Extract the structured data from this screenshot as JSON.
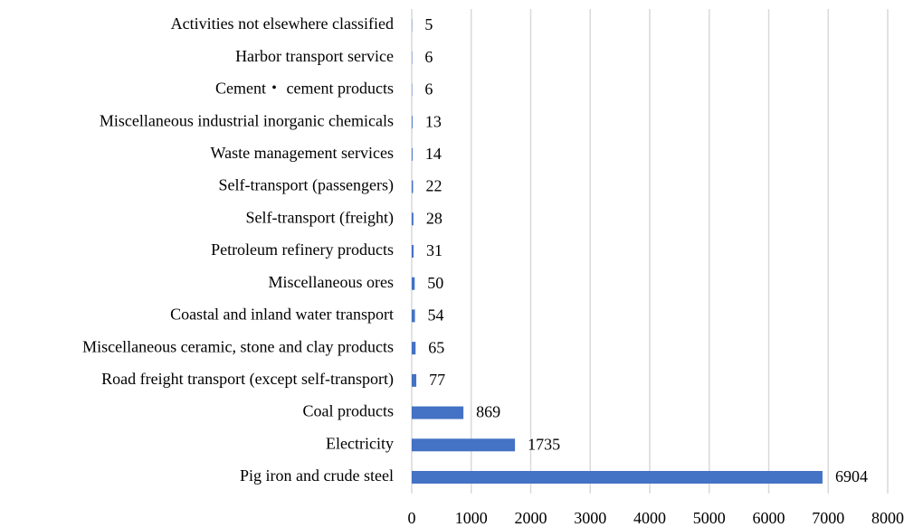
{
  "chart_data": {
    "type": "bar",
    "orientation": "horizontal",
    "categories": [
      "Activities not elsewhere classified",
      "Harbor transport service",
      "Cement・ cement products",
      "Miscellaneous industrial inorganic chemicals",
      "Waste management services",
      "Self-transport (passengers)",
      "Self-transport (freight)",
      "Petroleum refinery products",
      "Miscellaneous ores",
      "Coastal and inland water transport",
      "Miscellaneous ceramic, stone and clay products",
      "Road freight transport (except self-transport)",
      "Coal products",
      "Electricity",
      "Pig iron and crude steel"
    ],
    "values": [
      5,
      6,
      6,
      13,
      14,
      22,
      28,
      31,
      50,
      54,
      65,
      77,
      869,
      1735,
      6904
    ],
    "color": "#4472c4",
    "xlim": [
      0,
      8000
    ],
    "xticks": [
      0,
      1000,
      2000,
      3000,
      4000,
      5000,
      6000,
      7000,
      8000
    ],
    "grid": true
  }
}
